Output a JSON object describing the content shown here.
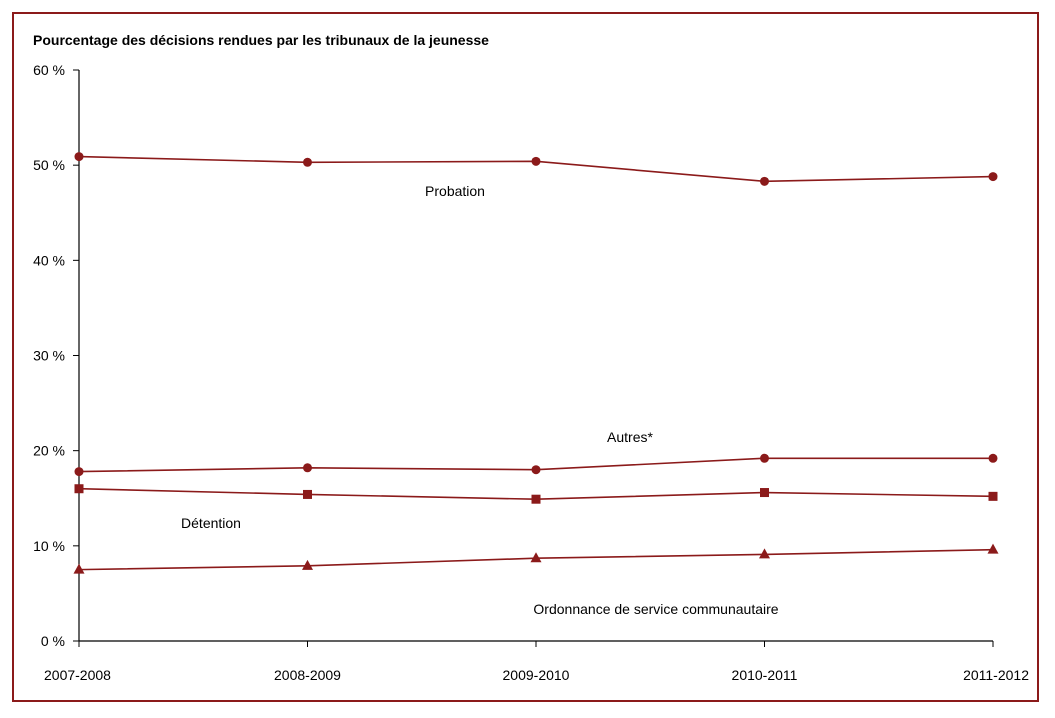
{
  "chart_data": {
    "type": "line",
    "title": "Pourcentage des décisions rendues par les tribunaux de la jeunesse",
    "xlabel": "",
    "ylabel": "",
    "categories": [
      "2007-2008",
      "2008-2009",
      "2009-2010",
      "2010-2011",
      "2011-2012"
    ],
    "ylim": [
      0,
      60
    ],
    "yticks": [
      "0 %",
      "10 %",
      "20 %",
      "30 %",
      "40 %",
      "50 %",
      "60 %"
    ],
    "grid": false,
    "legend": "none",
    "series": [
      {
        "name": "Probation",
        "marker": "circle",
        "values": [
          50.9,
          50.3,
          50.4,
          48.3,
          48.8
        ]
      },
      {
        "name": "Autres*",
        "marker": "circle",
        "values": [
          17.8,
          18.2,
          18.0,
          19.2,
          19.2
        ]
      },
      {
        "name": "Détention",
        "marker": "square",
        "values": [
          16.0,
          15.4,
          14.9,
          15.6,
          15.2
        ]
      },
      {
        "name": "Ordonnance de service communautaire",
        "marker": "triangle",
        "values": [
          7.5,
          7.9,
          8.7,
          9.1,
          9.6
        ]
      }
    ],
    "color": "#8b1a1a"
  }
}
